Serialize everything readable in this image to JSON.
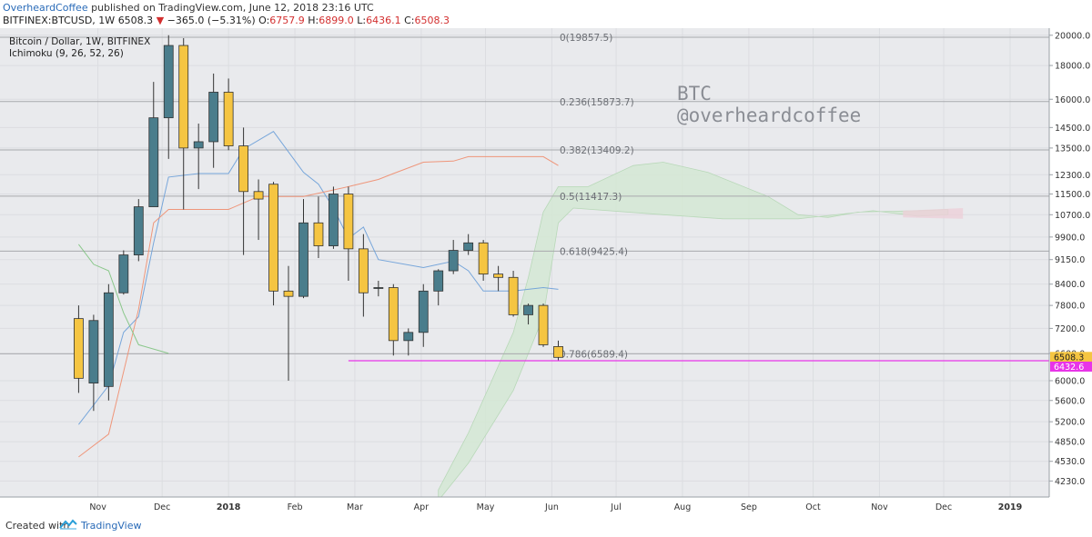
{
  "header": {
    "author": "OverheardCoffee",
    "published": "published on TradingView.com, June 12, 2018 23:16 UTC",
    "symbol": "BITFINEX:BTCUSD, 1W",
    "last": "6508.3",
    "change": "−365.0 (−5.31%)",
    "ohlc": [
      {
        "k": "O:",
        "v": "6757.9"
      },
      {
        "k": "H:",
        "v": "6899.0"
      },
      {
        "k": "L:",
        "v": "6436.1"
      },
      {
        "k": "C:",
        "v": "6508.3"
      }
    ]
  },
  "legend": {
    "title": "Bitcoin / Dollar, 1W, BITFINEX",
    "indicator": "Ichimoku (9, 26, 52, 26)"
  },
  "watermark": {
    "line1": "BTC",
    "line2": "@overheardcoffee"
  },
  "footer": {
    "created_with": "Created with",
    "brand": "TradingView"
  },
  "colors": {
    "up": "#4a7d8c",
    "down": "#f5c542",
    "conversion": "#6a9fd8",
    "base": "#f08d6e",
    "lagging": "#7fc37f",
    "cloud_bull": "#d4e8d4",
    "cloud_bear": "#eccfd8",
    "level_line": "#e834e8",
    "background": "#e9eaed"
  },
  "chart_data": {
    "type": "candlestick",
    "scale": "log",
    "ylim": [
      4000,
      20500
    ],
    "y_ticks": [
      "20000.0",
      "18000.0",
      "16000.0",
      "14500.0",
      "13500.0",
      "12300.0",
      "11500.0",
      "10700.0",
      "9900.0",
      "9150.0",
      "8400.0",
      "7800.0",
      "7200.0",
      "6600.0",
      "6000.0",
      "5600.0",
      "5200.0",
      "4850.0",
      "4530.0",
      "4230.0"
    ],
    "x_labels": [
      {
        "label": "Nov",
        "date": "2017-11-01"
      },
      {
        "label": "Dec",
        "date": "2017-12-01"
      },
      {
        "label": "2018",
        "date": "2018-01-01"
      },
      {
        "label": "Feb",
        "date": "2018-02-01"
      },
      {
        "label": "Mar",
        "date": "2018-03-01"
      },
      {
        "label": "Apr",
        "date": "2018-04-01"
      },
      {
        "label": "May",
        "date": "2018-05-01"
      },
      {
        "label": "Jun",
        "date": "2018-06-01"
      },
      {
        "label": "Jul",
        "date": "2018-07-01"
      },
      {
        "label": "Aug",
        "date": "2018-08-01"
      },
      {
        "label": "Sep",
        "date": "2018-09-01"
      },
      {
        "label": "Oct",
        "date": "2018-10-01"
      },
      {
        "label": "Nov",
        "date": "2018-11-01"
      },
      {
        "label": "Dec",
        "date": "2018-12-01"
      },
      {
        "label": "2019",
        "date": "2019-01-01"
      }
    ],
    "candles": [
      {
        "date": "2017-10-23",
        "o": 7450,
        "h": 7800,
        "l": 5750,
        "c": 6050
      },
      {
        "date": "2017-10-30",
        "o": 5950,
        "h": 7550,
        "l": 5400,
        "c": 7400
      },
      {
        "date": "2017-11-06",
        "o": 5880,
        "h": 8400,
        "l": 5600,
        "c": 8150
      },
      {
        "date": "2017-11-13",
        "o": 8150,
        "h": 9450,
        "l": 8100,
        "c": 9300
      },
      {
        "date": "2017-11-20",
        "o": 9300,
        "h": 11300,
        "l": 9100,
        "c": 11000
      },
      {
        "date": "2017-11-27",
        "o": 11000,
        "h": 17000,
        "l": 11000,
        "c": 15000
      },
      {
        "date": "2017-12-04",
        "o": 15000,
        "h": 20000,
        "l": 13000,
        "c": 19300
      },
      {
        "date": "2017-12-11",
        "o": 19300,
        "h": 19800,
        "l": 10900,
        "c": 13500
      },
      {
        "date": "2017-12-18",
        "o": 13500,
        "h": 14700,
        "l": 11700,
        "c": 13800
      },
      {
        "date": "2017-12-25",
        "o": 13800,
        "h": 17500,
        "l": 12600,
        "c": 16400
      },
      {
        "date": "2018-01-01",
        "o": 16400,
        "h": 17200,
        "l": 13400,
        "c": 13600
      },
      {
        "date": "2018-01-08",
        "o": 13600,
        "h": 14500,
        "l": 9300,
        "c": 11600
      },
      {
        "date": "2018-01-15",
        "o": 11600,
        "h": 12100,
        "l": 9800,
        "c": 11300
      },
      {
        "date": "2018-01-22",
        "o": 11900,
        "h": 12000,
        "l": 7800,
        "c": 8200
      },
      {
        "date": "2018-01-29",
        "o": 8200,
        "h": 8950,
        "l": 6000,
        "c": 8050
      },
      {
        "date": "2018-02-05",
        "o": 8050,
        "h": 11300,
        "l": 8000,
        "c": 10400
      },
      {
        "date": "2018-02-12",
        "o": 10400,
        "h": 11400,
        "l": 9200,
        "c": 9600
      },
      {
        "date": "2018-02-19",
        "o": 9600,
        "h": 11800,
        "l": 9500,
        "c": 11500
      },
      {
        "date": "2018-02-26",
        "o": 11500,
        "h": 11800,
        "l": 8500,
        "c": 9500
      },
      {
        "date": "2018-03-05",
        "o": 9500,
        "h": 10000,
        "l": 7500,
        "c": 8150
      },
      {
        "date": "2018-03-12",
        "o": 8300,
        "h": 8500,
        "l": 8050,
        "c": 8300
      },
      {
        "date": "2018-03-19",
        "o": 8300,
        "h": 8400,
        "l": 6550,
        "c": 6900
      },
      {
        "date": "2018-03-26",
        "o": 6900,
        "h": 7200,
        "l": 6550,
        "c": 7100
      },
      {
        "date": "2018-04-02",
        "o": 7100,
        "h": 8400,
        "l": 6750,
        "c": 8200
      },
      {
        "date": "2018-04-09",
        "o": 8200,
        "h": 8850,
        "l": 7800,
        "c": 8800
      },
      {
        "date": "2018-04-16",
        "o": 8800,
        "h": 9800,
        "l": 8700,
        "c": 9450
      },
      {
        "date": "2018-04-23",
        "o": 9450,
        "h": 10000,
        "l": 9300,
        "c": 9700
      },
      {
        "date": "2018-04-30",
        "o": 9700,
        "h": 9800,
        "l": 8500,
        "c": 8700
      },
      {
        "date": "2018-05-07",
        "o": 8700,
        "h": 8950,
        "l": 8200,
        "c": 8600
      },
      {
        "date": "2018-05-14",
        "o": 8600,
        "h": 8800,
        "l": 7500,
        "c": 7550
      },
      {
        "date": "2018-05-21",
        "o": 7550,
        "h": 7850,
        "l": 7300,
        "c": 7800
      },
      {
        "date": "2018-05-28",
        "o": 7800,
        "h": 7850,
        "l": 6750,
        "c": 6800
      },
      {
        "date": "2018-06-04",
        "o": 6758,
        "h": 6899,
        "l": 6436,
        "c": 6508
      }
    ],
    "ichimoku": {
      "conversion": [
        {
          "date": "2017-10-23",
          "y": 5150
        },
        {
          "date": "2017-11-06",
          "y": 5900
        },
        {
          "date": "2017-11-13",
          "y": 7100
        },
        {
          "date": "2017-11-20",
          "y": 7500
        },
        {
          "date": "2017-11-27",
          "y": 9700
        },
        {
          "date": "2017-12-04",
          "y": 12200
        },
        {
          "date": "2017-12-18",
          "y": 12350
        },
        {
          "date": "2018-01-01",
          "y": 12350
        },
        {
          "date": "2018-01-08",
          "y": 13450
        },
        {
          "date": "2018-01-22",
          "y": 14300
        },
        {
          "date": "2018-02-05",
          "y": 12400
        },
        {
          "date": "2018-02-12",
          "y": 11900
        },
        {
          "date": "2018-02-19",
          "y": 10950
        },
        {
          "date": "2018-02-26",
          "y": 9850
        },
        {
          "date": "2018-03-05",
          "y": 10250
        },
        {
          "date": "2018-03-12",
          "y": 9150
        },
        {
          "date": "2018-04-02",
          "y": 8900
        },
        {
          "date": "2018-04-16",
          "y": 9100
        },
        {
          "date": "2018-04-23",
          "y": 8800
        },
        {
          "date": "2018-04-30",
          "y": 8200
        },
        {
          "date": "2018-05-14",
          "y": 8200
        },
        {
          "date": "2018-05-28",
          "y": 8300
        },
        {
          "date": "2018-06-04",
          "y": 8250
        }
      ],
      "base": [
        {
          "date": "2017-10-23",
          "y": 4600
        },
        {
          "date": "2017-11-06",
          "y": 4980
        },
        {
          "date": "2017-11-20",
          "y": 7700
        },
        {
          "date": "2017-11-27",
          "y": 10400
        },
        {
          "date": "2017-12-04",
          "y": 10900
        },
        {
          "date": "2018-01-01",
          "y": 10900
        },
        {
          "date": "2018-01-15",
          "y": 11400
        },
        {
          "date": "2018-02-05",
          "y": 11400
        },
        {
          "date": "2018-02-26",
          "y": 11800
        },
        {
          "date": "2018-03-12",
          "y": 12100
        },
        {
          "date": "2018-03-19",
          "y": 12350
        },
        {
          "date": "2018-04-02",
          "y": 12850
        },
        {
          "date": "2018-04-16",
          "y": 12900
        },
        {
          "date": "2018-04-23",
          "y": 13100
        },
        {
          "date": "2018-05-28",
          "y": 13100
        },
        {
          "date": "2018-06-04",
          "y": 12700
        }
      ],
      "lagging": [
        {
          "date": "2017-10-23",
          "y": 9650
        },
        {
          "date": "2017-10-30",
          "y": 9000
        },
        {
          "date": "2017-11-06",
          "y": 8800
        },
        {
          "date": "2017-11-13",
          "y": 7600
        },
        {
          "date": "2017-11-20",
          "y": 6800
        },
        {
          "date": "2017-12-04",
          "y": 6600
        }
      ],
      "span_a": [
        {
          "date": "2018-04-09",
          "y": 3950
        },
        {
          "date": "2018-04-23",
          "y": 4500
        },
        {
          "date": "2018-05-14",
          "y": 5800
        },
        {
          "date": "2018-05-28",
          "y": 7500
        },
        {
          "date": "2018-06-04",
          "y": 10400
        },
        {
          "date": "2018-06-11",
          "y": 10950
        },
        {
          "date": "2018-07-23",
          "y": 10700
        },
        {
          "date": "2018-08-20",
          "y": 10550
        },
        {
          "date": "2018-09-24",
          "y": 10550
        },
        {
          "date": "2018-10-29",
          "y": 10850
        },
        {
          "date": "2018-11-19",
          "y": 10650
        },
        {
          "date": "2018-12-03",
          "y": 10700
        }
      ],
      "span_b": [
        {
          "date": "2018-04-09",
          "y": 4100
        },
        {
          "date": "2018-04-23",
          "y": 5000
        },
        {
          "date": "2018-05-14",
          "y": 7100
        },
        {
          "date": "2018-05-21",
          "y": 8600
        },
        {
          "date": "2018-05-28",
          "y": 10800
        },
        {
          "date": "2018-06-04",
          "y": 11800
        },
        {
          "date": "2018-06-18",
          "y": 11800
        },
        {
          "date": "2018-07-09",
          "y": 12700
        },
        {
          "date": "2018-07-23",
          "y": 12850
        },
        {
          "date": "2018-08-13",
          "y": 12400
        },
        {
          "date": "2018-09-10",
          "y": 11400
        },
        {
          "date": "2018-09-24",
          "y": 10700
        },
        {
          "date": "2018-10-08",
          "y": 10600
        },
        {
          "date": "2018-10-22",
          "y": 10800
        },
        {
          "date": "2018-11-19",
          "y": 10850
        },
        {
          "date": "2018-12-03",
          "y": 10900
        }
      ]
    },
    "fib_levels": [
      {
        "label": "0(19857.5)",
        "value": 19857.5
      },
      {
        "label": "0.236(15873.7)",
        "value": 15873.7
      },
      {
        "label": "0.382(13409.2)",
        "value": 13409.2
      },
      {
        "label": "0.5(11417.3)",
        "value": 11417.3
      },
      {
        "label": "0.618(9425.4)",
        "value": 9425.4
      },
      {
        "label": "0.786(6589.4)",
        "value": 6589.4
      }
    ],
    "horizontal_line": {
      "value": 6432.6,
      "label": "6432.6",
      "start_date": "2018-02-26"
    },
    "price_tags": [
      {
        "label": "6508.3",
        "value": 6508.3,
        "kind": "last"
      },
      {
        "label": "6432.6",
        "value": 6432.6,
        "kind": "line"
      }
    ]
  }
}
